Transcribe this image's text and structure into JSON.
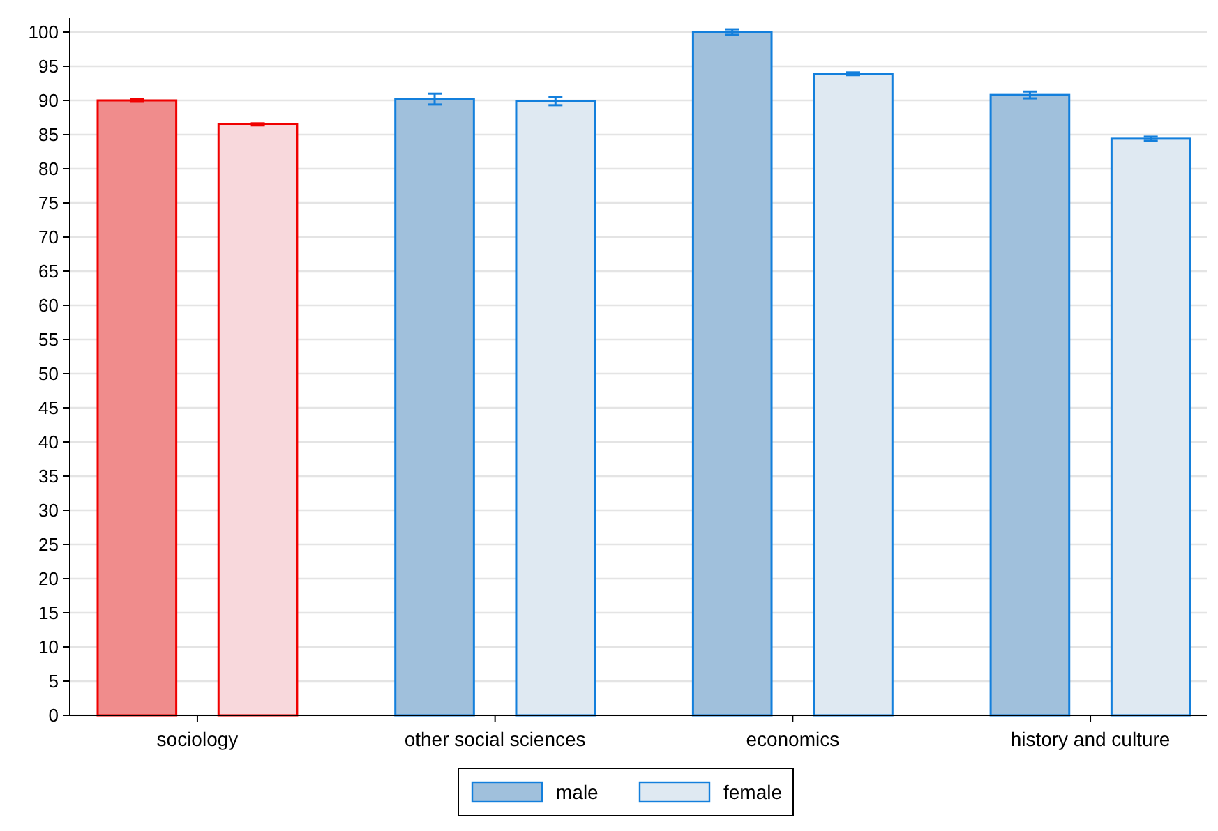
{
  "chart_data": {
    "type": "bar",
    "categories": [
      "sociology",
      "other social sciences",
      "economics",
      "history and culture"
    ],
    "series": [
      {
        "name": "male",
        "color": "#a0c0dc",
        "colors": [
          "#f08c8c",
          "#a0c0dc",
          "#a0c0dc",
          "#a0c0dc"
        ],
        "values": [
          90,
          90.2,
          100,
          90.8
        ],
        "errors": [
          0.2,
          0.8,
          0.4,
          0.5
        ]
      },
      {
        "name": "female",
        "color": "#dfe9f2",
        "colors": [
          "#f8d8dc",
          "#dfe9f2",
          "#dfe9f2",
          "#dfe9f2"
        ],
        "values": [
          86.5,
          89.9,
          93.9,
          84.4
        ],
        "errors": [
          0.15,
          0.6,
          0.2,
          0.3
        ]
      }
    ],
    "ylim": [
      0,
      100
    ],
    "yticks": [
      0,
      5,
      10,
      15,
      20,
      25,
      30,
      35,
      40,
      45,
      50,
      55,
      60,
      65,
      70,
      75,
      80,
      85,
      90,
      95,
      100
    ],
    "grid": "y",
    "legend": "bottom"
  }
}
